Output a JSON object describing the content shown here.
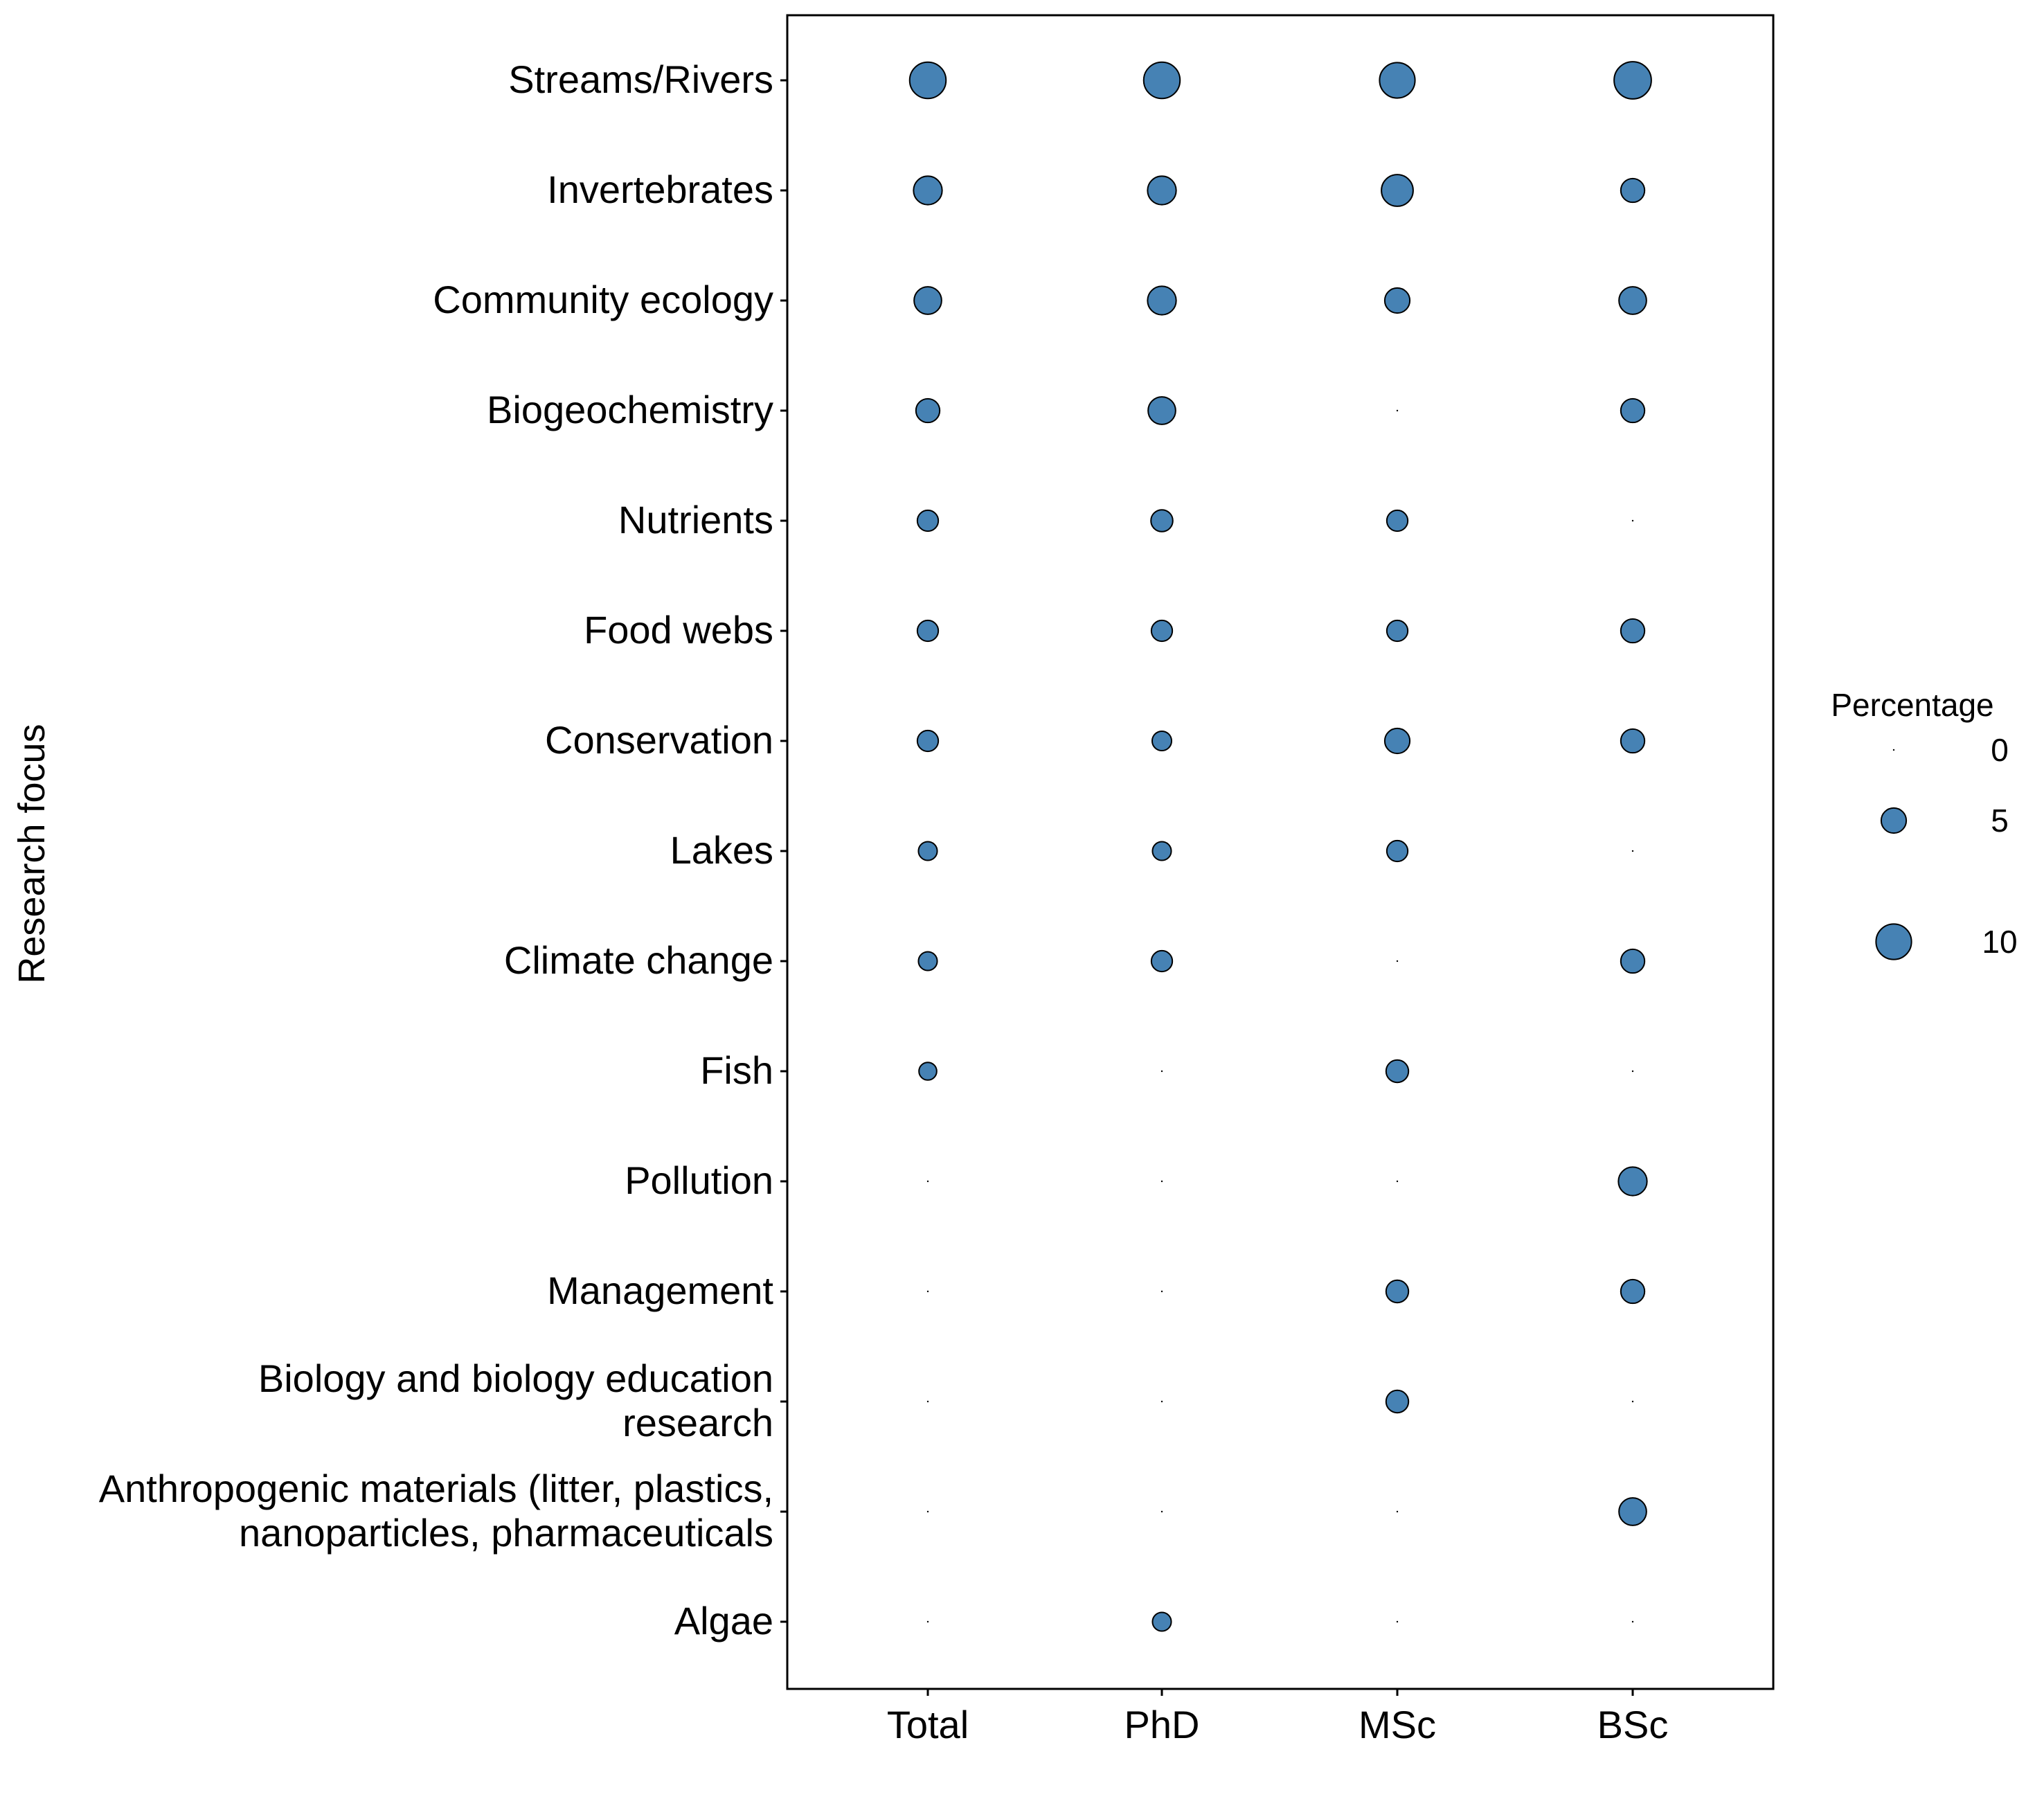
{
  "chart_data": {
    "type": "scatter",
    "subtype": "bubble",
    "ylabel": "Research focus",
    "xlabel": "",
    "categories": [
      "Total",
      "PhD",
      "MSc",
      "BSc"
    ],
    "rows": [
      [
        "Streams/Rivers"
      ],
      [
        "Invertebrates"
      ],
      [
        "Community ecology"
      ],
      [
        "Biogeochemistry"
      ],
      [
        "Nutrients"
      ],
      [
        "Food webs"
      ],
      [
        "Conservation"
      ],
      [
        "Lakes"
      ],
      [
        "Climate change"
      ],
      [
        "Fish"
      ],
      [
        "Pollution"
      ],
      [
        "Management"
      ],
      [
        "Biology and biology education",
        "research"
      ],
      [
        "Anthropogenic materials (litter, plastics,",
        "nanoparticles, pharmaceuticals"
      ],
      [
        "Algae"
      ]
    ],
    "values": [
      [
        10.5,
        10.5,
        10.0,
        11.0
      ],
      [
        6.5,
        6.5,
        8.0,
        4.5
      ],
      [
        6.0,
        6.5,
        5.0,
        6.0
      ],
      [
        4.5,
        6.0,
        0,
        4.5
      ],
      [
        3.5,
        3.8,
        3.5,
        0
      ],
      [
        3.5,
        3.5,
        3.5,
        4.5
      ],
      [
        3.5,
        3.0,
        5.0,
        4.5
      ],
      [
        2.8,
        2.8,
        3.5,
        0
      ],
      [
        2.8,
        3.5,
        0,
        4.5
      ],
      [
        2.5,
        0,
        4.0,
        0
      ],
      [
        0,
        0,
        0,
        6.5
      ],
      [
        0,
        0,
        4.0,
        4.5
      ],
      [
        0,
        0,
        4.0,
        0
      ],
      [
        0,
        0,
        0,
        6.0
      ],
      [
        0,
        2.8,
        0,
        0
      ]
    ],
    "size_legend": {
      "title": "Percentage",
      "values": [
        0,
        5,
        10
      ],
      "labels": [
        "0",
        "5",
        "10"
      ]
    },
    "marker_color": "#4682b4",
    "marker_edge": "#000000",
    "grid": false,
    "legend_position": "right"
  }
}
